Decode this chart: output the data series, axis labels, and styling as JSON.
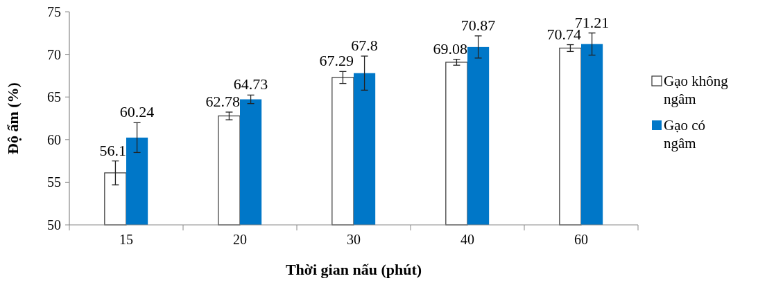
{
  "chart_data": {
    "type": "bar",
    "xlabel": "Thời gian nấu (phút)",
    "ylabel": "Độ ẩm (%)",
    "categories": [
      "15",
      "20",
      "30",
      "40",
      "60"
    ],
    "series": [
      {
        "name": "Gạo không ngâm",
        "color": "#ffffff",
        "values": [
          56.1,
          62.78,
          67.29,
          69.08,
          70.74
        ],
        "errors": [
          1.4,
          0.45,
          0.7,
          0.35,
          0.4
        ]
      },
      {
        "name": "Gạo có ngâm",
        "color": "#0077c8",
        "values": [
          60.24,
          64.73,
          67.8,
          70.87,
          71.21
        ],
        "errors": [
          1.75,
          0.5,
          2,
          1.3,
          1.3
        ]
      }
    ],
    "ylim": [
      50,
      75
    ],
    "yticks": [
      50,
      55,
      60,
      65,
      70,
      75
    ],
    "data_labels": true,
    "legend": "right",
    "grid": false
  }
}
